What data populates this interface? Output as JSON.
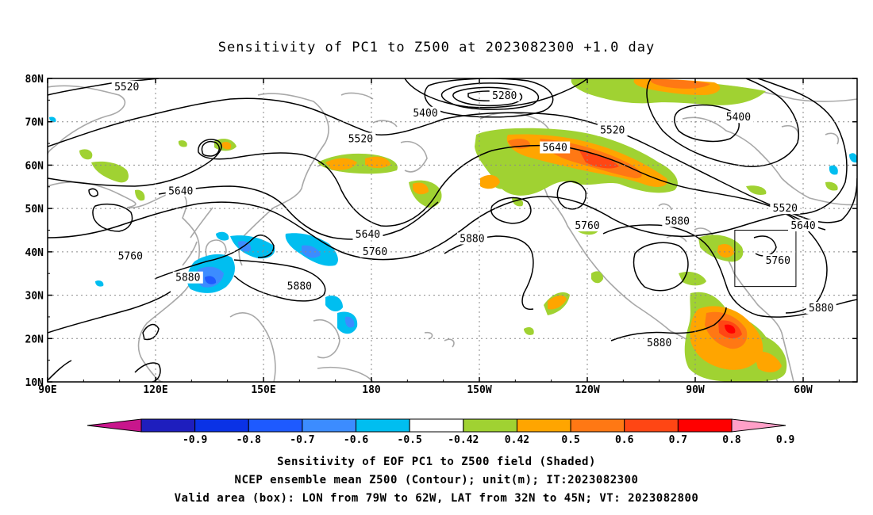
{
  "title": "Sensitivity of PC1 to Z500 at 2023082300 +1.0 day",
  "map": {
    "lat_labels": [
      "80N",
      "70N",
      "60N",
      "50N",
      "40N",
      "30N",
      "20N",
      "10N"
    ],
    "lon_labels": [
      "90E",
      "120E",
      "150E",
      "180",
      "150W",
      "120W",
      "90W",
      "60W"
    ],
    "contour_labels": [
      {
        "text": "5520",
        "lat": 78,
        "lon_e": 112
      },
      {
        "text": "5400",
        "lat": 72,
        "lon_e": 195
      },
      {
        "text": "5280",
        "lat": 76,
        "lon_e": 217
      },
      {
        "text": "5520",
        "lat": 68,
        "lon_e": 247
      },
      {
        "text": "5400",
        "lat": 71,
        "lon_e": 282
      },
      {
        "text": "5520",
        "lat": 66,
        "lon_e": 177
      },
      {
        "text": "5640",
        "lat": 64,
        "lon_e": 231
      },
      {
        "text": "5640",
        "lat": 54,
        "lon_e": 127
      },
      {
        "text": "5640",
        "lat": 44,
        "lon_e": 179
      },
      {
        "text": "5880",
        "lat": 43,
        "lon_e": 208
      },
      {
        "text": "5760",
        "lat": 46,
        "lon_e": 240
      },
      {
        "text": "5880",
        "lat": 47,
        "lon_e": 265
      },
      {
        "text": "5520",
        "lat": 50,
        "lon_e": 295
      },
      {
        "text": "5640",
        "lat": 46,
        "lon_e": 300
      },
      {
        "text": "5760",
        "lat": 38,
        "lon_e": 293
      },
      {
        "text": "5760",
        "lat": 39,
        "lon_e": 113
      },
      {
        "text": "5760",
        "lat": 40,
        "lon_e": 181
      },
      {
        "text": "5880",
        "lat": 34,
        "lon_e": 129
      },
      {
        "text": "5880",
        "lat": 32,
        "lon_e": 160
      },
      {
        "text": "5880",
        "lat": 27,
        "lon_e": 305
      },
      {
        "text": "5880",
        "lat": 19,
        "lon_e": 260
      }
    ],
    "valid_box": {
      "lon_w": 79,
      "lon_e": 62,
      "lat_s": 32,
      "lat_n": 45
    }
  },
  "colorbar": {
    "labels": [
      "-0.9",
      "-0.8",
      "-0.7",
      "-0.6",
      "-0.5",
      "-0.42",
      "0.42",
      "0.5",
      "0.6",
      "0.7",
      "0.8",
      "0.9"
    ],
    "colors": [
      "#c8168c",
      "#1e1ebe",
      "#0a32e6",
      "#1e5aff",
      "#3c8cff",
      "#00bef0",
      "#ffffff",
      "#a0d232",
      "#ffa500",
      "#ff7814",
      "#ff4614",
      "#ff0000",
      "#ffa0c8"
    ]
  },
  "captions": {
    "line1": "Sensitivity of EOF PC1 to Z500 field (Shaded)",
    "line2": "NCEP ensemble mean Z500 (Contour); unit(m); IT:2023082300",
    "line3": "Valid area (box): LON from 79W to 62W, LAT from 32N to 45N; VT: 2023082800"
  }
}
